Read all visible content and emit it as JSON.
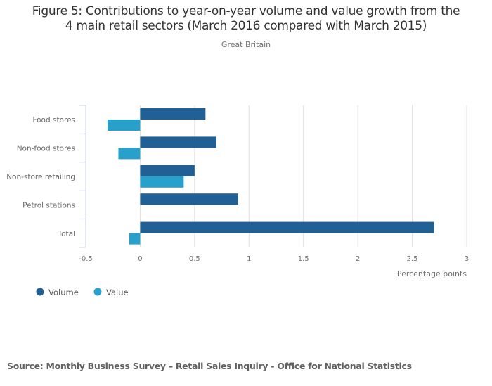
{
  "chart_data": {
    "type": "bar",
    "orientation": "horizontal",
    "title": "Figure 5: Contributions to year-on-year volume and value growth from the 4 main retail sectors (March 2016 compared with March 2015)",
    "title_lines": [
      "Figure 5: Contributions to year-on-year volume and value growth from the",
      "4 main retail sectors (March 2016 compared with March 2015)"
    ],
    "subtitle": "Great Britain",
    "categories": [
      "Food stores",
      "Non-food stores",
      "Non-store retailing",
      "Petrol stations",
      "Total"
    ],
    "series": [
      {
        "name": "Volume",
        "color": "#206095",
        "values": [
          0.6,
          0.7,
          0.5,
          0.9,
          2.7
        ]
      },
      {
        "name": "Value",
        "color": "#27a0cc",
        "values": [
          -0.3,
          -0.2,
          0.4,
          0,
          -0.1
        ]
      }
    ],
    "xlabel": "Percentage points",
    "ylabel": "",
    "xlim": [
      -0.5,
      3
    ],
    "xticks": [
      -0.5,
      0,
      0.5,
      1,
      1.5,
      2,
      2.5,
      3
    ],
    "xtick_labels": [
      "-0.5",
      "0",
      "0.5",
      "1",
      "1.5",
      "2",
      "2.5",
      "3"
    ],
    "grid": true,
    "legend_position": "bottom-left"
  },
  "source": "Source: Monthly Business Survey – Retail Sales Inquiry - Office for National Statistics"
}
